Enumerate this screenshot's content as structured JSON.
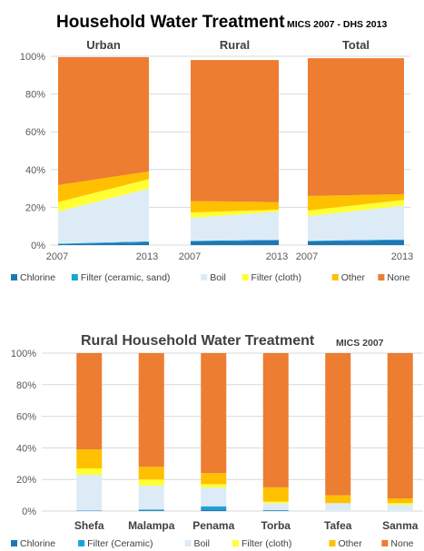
{
  "colors": {
    "Chlorine": "#1f77b4",
    "Filter (ceramic, sand)": "#1aa3d9",
    "Boil": "#ddebf7",
    "Filter (cloth)": "#ffff33",
    "Other": "#ffc000",
    "None": "#ed7d31"
  },
  "chart_data": [
    {
      "type": "area",
      "title": "Household Water Treatment",
      "subtitle": "MICS 2007 - DHS 2013",
      "y_ticks": [
        "0%",
        "20%",
        "40%",
        "60%",
        "80%",
        "100%"
      ],
      "ylim": [
        0,
        100
      ],
      "grid": true,
      "legend_position": "bottom",
      "legend": [
        "Chlorine",
        "Filter (ceramic, sand)",
        "Boil",
        "Filter (cloth)",
        "Other",
        "None"
      ],
      "panels": [
        {
          "name": "Urban",
          "x": [
            "2007",
            "2013"
          ],
          "series": [
            {
              "name": "Chlorine",
              "values": [
                0.5,
                1.5
              ]
            },
            {
              "name": "Filter (ceramic, sand)",
              "values": [
                0.3,
                0.5
              ]
            },
            {
              "name": "Boil",
              "values": [
                17,
                28
              ]
            },
            {
              "name": "Filter (cloth)",
              "values": [
                5,
                5
              ]
            },
            {
              "name": "Other",
              "values": [
                9,
                4
              ]
            },
            {
              "name": "None",
              "values": [
                67.7,
                60.5
              ]
            }
          ]
        },
        {
          "name": "Rural",
          "x": [
            "2007",
            "2013"
          ],
          "series": [
            {
              "name": "Chlorine",
              "values": [
                2,
                2.5
              ]
            },
            {
              "name": "Filter (ceramic, sand)",
              "values": [
                0.3,
                0.3
              ]
            },
            {
              "name": "Boil",
              "values": [
                12,
                15
              ]
            },
            {
              "name": "Filter (cloth)",
              "values": [
                3,
                1
              ]
            },
            {
              "name": "Other",
              "values": [
                6,
                4
              ]
            },
            {
              "name": "None",
              "values": [
                74.7,
                75.2
              ]
            }
          ]
        },
        {
          "name": "Total",
          "x": [
            "2007",
            "2013"
          ],
          "series": [
            {
              "name": "Chlorine",
              "values": [
                2,
                2.5
              ]
            },
            {
              "name": "Filter (ceramic, sand)",
              "values": [
                0.3,
                0.5
              ]
            },
            {
              "name": "Boil",
              "values": [
                13,
                18
              ]
            },
            {
              "name": "Filter (cloth)",
              "values": [
                3,
                3
              ]
            },
            {
              "name": "Other",
              "values": [
                7.7,
                3
              ]
            },
            {
              "name": "None",
              "values": [
                73,
                72
              ]
            }
          ]
        }
      ]
    },
    {
      "type": "bar",
      "stacked": true,
      "title": "Rural Household Water Treatment",
      "subtitle": "MICS 2007",
      "y_ticks": [
        "0%",
        "20%",
        "40%",
        "60%",
        "80%",
        "100%"
      ],
      "ylim": [
        0,
        100
      ],
      "grid": true,
      "legend_position": "bottom",
      "legend": [
        "Chlorine",
        "Filter (Ceramic)",
        "Boil",
        "Filter (cloth)",
        "Other",
        "None"
      ],
      "categories": [
        "Shefa",
        "Malampa",
        "Penama",
        "Torba",
        "Tafea",
        "Sanma"
      ],
      "series": [
        {
          "name": "Chlorine",
          "values": [
            0,
            0.5,
            1,
            0.5,
            0,
            0
          ]
        },
        {
          "name": "Filter (Ceramic)",
          "values": [
            0.3,
            0.5,
            2,
            0,
            0,
            0
          ]
        },
        {
          "name": "Boil",
          "values": [
            22.7,
            15,
            12,
            4.5,
            5,
            4
          ]
        },
        {
          "name": "Filter (cloth)",
          "values": [
            4,
            4,
            2,
            1,
            0,
            1
          ]
        },
        {
          "name": "Other",
          "values": [
            12,
            8,
            7,
            9,
            5,
            3
          ]
        },
        {
          "name": "None",
          "values": [
            61,
            72,
            76,
            85,
            90,
            92
          ]
        }
      ]
    }
  ]
}
